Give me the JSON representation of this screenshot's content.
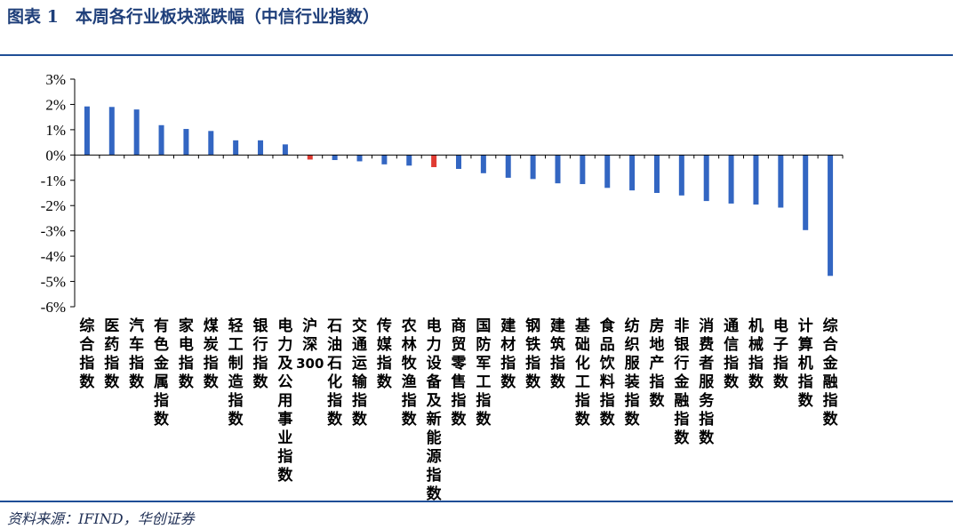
{
  "title": "图表 1　本周各行业板块涨跌幅（中信行业指数）",
  "source": "资料来源：IFIND，华创证券",
  "chart_data": {
    "type": "bar",
    "title": "",
    "xlabel": "",
    "ylabel": "",
    "ylim": [
      -6,
      3
    ],
    "yticks": [
      "3%",
      "2%",
      "1%",
      "0%",
      "-1%",
      "-2%",
      "-3%",
      "-4%",
      "-5%",
      "-6%"
    ],
    "colors": {
      "default": "#3366c2",
      "highlight": "#e03b32"
    },
    "highlight": [
      "沪深300",
      "电力设备及新能源指数"
    ],
    "categories": [
      "综合指数",
      "医药指数",
      "汽车指数",
      "有色金属指数",
      "家电指数",
      "煤炭指数",
      "轻工制造指数",
      "银行指数",
      "电力及公用事业指数",
      "沪深300",
      "石油石化指数",
      "交通运输指数",
      "传媒指数",
      "农林牧渔指数",
      "电力设备及新能源指数",
      "商贸零售指数",
      "国防军工指数",
      "建材指数",
      "钢铁指数",
      "建筑指数",
      "基础化工指数",
      "食品饮料指数",
      "纺织服装指数",
      "房地产指数",
      "非银行金融指数",
      "消费者服务指数",
      "通信指数",
      "机械指数",
      "电子指数",
      "计算机指数",
      "综合金融指数"
    ],
    "values": [
      1.92,
      1.9,
      1.8,
      1.18,
      1.03,
      0.95,
      0.58,
      0.58,
      0.42,
      -0.18,
      -0.2,
      -0.25,
      -0.37,
      -0.42,
      -0.48,
      -0.55,
      -0.72,
      -0.9,
      -0.95,
      -1.12,
      -1.15,
      -1.3,
      -1.4,
      -1.5,
      -1.6,
      -1.82,
      -1.92,
      -1.96,
      -2.08,
      -2.97,
      -4.78
    ]
  }
}
